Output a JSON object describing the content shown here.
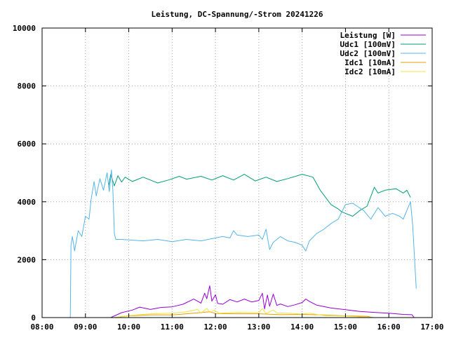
{
  "chart_data": {
    "type": "line",
    "title": "Leistung, DC-Spannung/-Strom 20241226",
    "xlabel": "",
    "ylabel": "",
    "xlim": [
      "08:00",
      "17:00"
    ],
    "ylim": [
      0,
      10000
    ],
    "x_ticks": [
      "08:00",
      "09:00",
      "10:00",
      "11:00",
      "12:00",
      "13:00",
      "14:00",
      "15:00",
      "16:00",
      "17:00"
    ],
    "y_ticks": [
      "0",
      "2000",
      "4000",
      "6000",
      "8000",
      "10000"
    ],
    "grid": true,
    "legend_position": "top-right",
    "series": [
      {
        "name": "Leistung [W]",
        "color": "#9400d3",
        "points": [
          [
            "09:35",
            0
          ],
          [
            "09:50",
            170
          ],
          [
            "10:05",
            260
          ],
          [
            "10:15",
            360
          ],
          [
            "10:30",
            280
          ],
          [
            "10:45",
            350
          ],
          [
            "11:00",
            370
          ],
          [
            "11:15",
            460
          ],
          [
            "11:30",
            640
          ],
          [
            "11:40",
            500
          ],
          [
            "11:45",
            840
          ],
          [
            "11:48",
            650
          ],
          [
            "11:52",
            1100
          ],
          [
            "11:55",
            570
          ],
          [
            "12:00",
            790
          ],
          [
            "12:03",
            490
          ],
          [
            "12:10",
            460
          ],
          [
            "12:20",
            620
          ],
          [
            "12:30",
            540
          ],
          [
            "12:40",
            640
          ],
          [
            "12:50",
            540
          ],
          [
            "13:00",
            590
          ],
          [
            "13:05",
            840
          ],
          [
            "13:08",
            300
          ],
          [
            "13:12",
            780
          ],
          [
            "13:15",
            390
          ],
          [
            "13:20",
            810
          ],
          [
            "13:25",
            420
          ],
          [
            "13:30",
            470
          ],
          [
            "13:40",
            380
          ],
          [
            "13:50",
            440
          ],
          [
            "14:00",
            520
          ],
          [
            "14:05",
            640
          ],
          [
            "14:10",
            560
          ],
          [
            "14:20",
            430
          ],
          [
            "14:40",
            330
          ],
          [
            "15:00",
            270
          ],
          [
            "15:20",
            210
          ],
          [
            "15:40",
            180
          ],
          [
            "16:00",
            150
          ],
          [
            "16:20",
            110
          ],
          [
            "16:32",
            100
          ],
          [
            "16:35",
            0
          ]
        ]
      },
      {
        "name": "Udc1 [100mV]",
        "color": "#009e73",
        "points": [
          [
            "09:32",
            4500
          ],
          [
            "09:35",
            4950
          ],
          [
            "09:40",
            4550
          ],
          [
            "09:45",
            4900
          ],
          [
            "09:50",
            4680
          ],
          [
            "09:55",
            4850
          ],
          [
            "10:05",
            4700
          ],
          [
            "10:20",
            4850
          ],
          [
            "10:30",
            4750
          ],
          [
            "10:40",
            4650
          ],
          [
            "10:55",
            4750
          ],
          [
            "11:10",
            4880
          ],
          [
            "11:20",
            4780
          ],
          [
            "11:40",
            4880
          ],
          [
            "11:55",
            4750
          ],
          [
            "12:10",
            4900
          ],
          [
            "12:25",
            4750
          ],
          [
            "12:40",
            4950
          ],
          [
            "12:55",
            4720
          ],
          [
            "13:10",
            4850
          ],
          [
            "13:25",
            4700
          ],
          [
            "13:40",
            4800
          ],
          [
            "14:00",
            4950
          ],
          [
            "14:15",
            4850
          ],
          [
            "14:25",
            4400
          ],
          [
            "14:40",
            3900
          ],
          [
            "14:50",
            3750
          ],
          [
            "14:55",
            3650
          ],
          [
            "15:10",
            3500
          ],
          [
            "15:20",
            3700
          ],
          [
            "15:30",
            3850
          ],
          [
            "15:40",
            4500
          ],
          [
            "15:45",
            4300
          ],
          [
            "15:55",
            4400
          ],
          [
            "16:10",
            4450
          ],
          [
            "16:20",
            4300
          ],
          [
            "16:25",
            4400
          ],
          [
            "16:30",
            4150
          ]
        ]
      },
      {
        "name": "Udc2 [100mV]",
        "color": "#56b4e9",
        "points": [
          [
            "08:39",
            0
          ],
          [
            "08:40",
            2500
          ],
          [
            "08:42",
            2800
          ],
          [
            "08:45",
            2300
          ],
          [
            "08:50",
            3000
          ],
          [
            "08:55",
            2800
          ],
          [
            "09:00",
            3500
          ],
          [
            "09:05",
            3400
          ],
          [
            "09:08",
            4100
          ],
          [
            "09:12",
            4700
          ],
          [
            "09:15",
            4200
          ],
          [
            "09:20",
            4800
          ],
          [
            "09:25",
            4400
          ],
          [
            "09:30",
            5000
          ],
          [
            "09:33",
            4350
          ],
          [
            "09:36",
            5100
          ],
          [
            "09:38",
            4400
          ],
          [
            "09:40",
            2900
          ],
          [
            "09:42",
            2700
          ],
          [
            "09:50",
            2700
          ],
          [
            "10:00",
            2680
          ],
          [
            "10:20",
            2650
          ],
          [
            "10:40",
            2700
          ],
          [
            "11:00",
            2620
          ],
          [
            "11:20",
            2700
          ],
          [
            "11:40",
            2650
          ],
          [
            "12:00",
            2750
          ],
          [
            "12:10",
            2800
          ],
          [
            "12:20",
            2750
          ],
          [
            "12:25",
            3000
          ],
          [
            "12:30",
            2850
          ],
          [
            "12:45",
            2800
          ],
          [
            "13:00",
            2850
          ],
          [
            "13:05",
            2700
          ],
          [
            "13:10",
            3050
          ],
          [
            "13:15",
            2350
          ],
          [
            "13:20",
            2600
          ],
          [
            "13:30",
            2800
          ],
          [
            "13:40",
            2650
          ],
          [
            "13:50",
            2600
          ],
          [
            "14:00",
            2500
          ],
          [
            "14:05",
            2300
          ],
          [
            "14:10",
            2650
          ],
          [
            "14:20",
            2900
          ],
          [
            "14:30",
            3050
          ],
          [
            "14:40",
            3250
          ],
          [
            "14:50",
            3400
          ],
          [
            "15:00",
            3900
          ],
          [
            "15:10",
            3950
          ],
          [
            "15:25",
            3700
          ],
          [
            "15:35",
            3400
          ],
          [
            "15:45",
            3800
          ],
          [
            "15:55",
            3500
          ],
          [
            "16:05",
            3600
          ],
          [
            "16:15",
            3500
          ],
          [
            "16:20",
            3400
          ],
          [
            "16:30",
            4000
          ],
          [
            "16:33",
            3200
          ],
          [
            "16:38",
            1000
          ]
        ]
      },
      {
        "name": "Idc1 [10mA]",
        "color": "#e69f00",
        "points": [
          [
            "09:40",
            0
          ],
          [
            "10:00",
            60
          ],
          [
            "10:30",
            90
          ],
          [
            "11:00",
            90
          ],
          [
            "11:30",
            150
          ],
          [
            "11:52",
            200
          ],
          [
            "12:00",
            140
          ],
          [
            "12:30",
            130
          ],
          [
            "13:00",
            130
          ],
          [
            "13:30",
            100
          ],
          [
            "14:00",
            110
          ],
          [
            "14:30",
            90
          ],
          [
            "15:00",
            60
          ],
          [
            "15:30",
            40
          ],
          [
            "15:38",
            0
          ]
        ]
      },
      {
        "name": "Idc2 [10mA]",
        "color": "#f0e442",
        "points": [
          [
            "09:40",
            0
          ],
          [
            "10:00",
            70
          ],
          [
            "10:30",
            130
          ],
          [
            "11:00",
            150
          ],
          [
            "11:20",
            200
          ],
          [
            "11:35",
            280
          ],
          [
            "11:40",
            150
          ],
          [
            "11:48",
            320
          ],
          [
            "11:52",
            170
          ],
          [
            "11:58",
            260
          ],
          [
            "12:05",
            150
          ],
          [
            "12:30",
            180
          ],
          [
            "13:00",
            170
          ],
          [
            "13:05",
            310
          ],
          [
            "13:10",
            140
          ],
          [
            "13:20",
            260
          ],
          [
            "13:25",
            160
          ],
          [
            "13:40",
            150
          ],
          [
            "14:00",
            120
          ],
          [
            "14:10",
            150
          ],
          [
            "14:30",
            70
          ],
          [
            "15:00",
            50
          ],
          [
            "15:38",
            0
          ]
        ]
      }
    ]
  }
}
